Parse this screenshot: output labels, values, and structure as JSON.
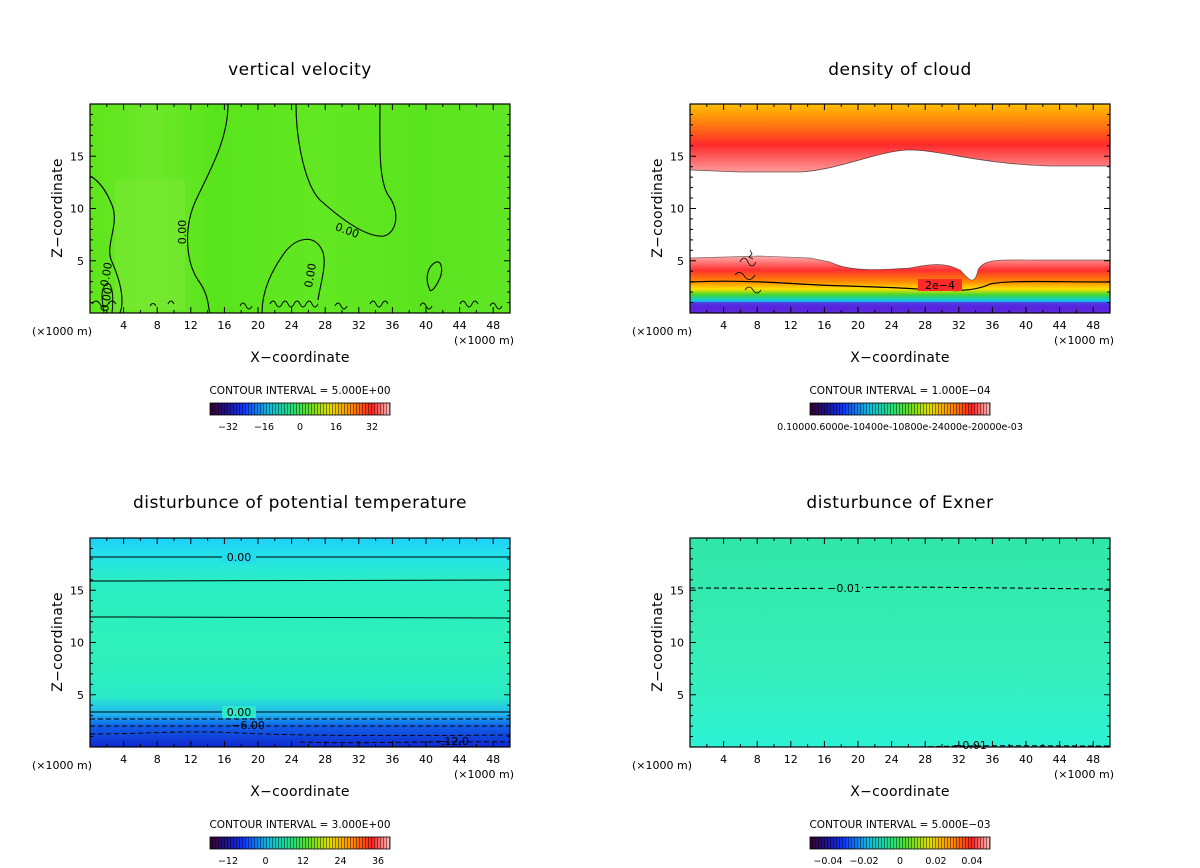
{
  "colors": {
    "velocity_field": "#5ee61c",
    "cloud_hot": "#ff2a2a",
    "cloud_mid": "#ffb000",
    "cloud_cold": "#6a1cd6",
    "theta_top": "#21d6f5",
    "theta_mid": "#2eeeb6",
    "theta_low": "#1434d8",
    "exner_field": "#34ecb2"
  },
  "chart_data": [
    {
      "type": "heatmap",
      "title": "vertical velocity",
      "xlabel": "X−coordinate",
      "ylabel": "Z−coordinate",
      "x_unit": "(×1000 m)",
      "x_ticks": [
        "4",
        "8",
        "12",
        "16",
        "20",
        "24",
        "28",
        "32",
        "36",
        "40",
        "44",
        "48"
      ],
      "y_ticks": [
        "5",
        "10",
        "15"
      ],
      "xlim": [
        0,
        50
      ],
      "ylim": [
        0,
        20
      ],
      "contour_interval": "CONTOUR INTERVAL = 5.000E+00",
      "colorbar_ticks": [
        "−32",
        "−16",
        "0",
        "16",
        "32"
      ],
      "contour_labels": [
        "0.00",
        "0.00",
        "0.00",
        "0.00",
        "0.00"
      ]
    },
    {
      "type": "heatmap",
      "title": "density of cloud",
      "xlabel": "X−coordinate",
      "ylabel": "Z−coordinate",
      "x_unit": "(×1000 m)",
      "x_ticks": [
        "4",
        "8",
        "12",
        "16",
        "20",
        "24",
        "28",
        "32",
        "36",
        "40",
        "44",
        "48"
      ],
      "y_ticks": [
        "5",
        "10",
        "15"
      ],
      "xlim": [
        0,
        50
      ],
      "ylim": [
        0,
        20
      ],
      "contour_interval": "CONTOUR INTERVAL = 1.000E−04",
      "colorbar_label": "0.10000.6000e-10400e-10800e-24000e-20000e-03",
      "contour_labels": [
        "2e−4"
      ]
    },
    {
      "type": "heatmap",
      "title": "disturbunce of potential temperature",
      "xlabel": "X−coordinate",
      "ylabel": "Z−coordinate",
      "x_unit": "(×1000 m)",
      "x_ticks": [
        "4",
        "8",
        "12",
        "16",
        "20",
        "24",
        "28",
        "32",
        "36",
        "40",
        "44",
        "48"
      ],
      "y_ticks": [
        "5",
        "10",
        "15"
      ],
      "xlim": [
        0,
        50
      ],
      "ylim": [
        0,
        20
      ],
      "contour_interval": "CONTOUR INTERVAL = 3.000E+00",
      "colorbar_ticks": [
        "−12",
        "0",
        "12",
        "24",
        "36"
      ],
      "contour_labels": [
        "0.00",
        "0.00",
        "−6.00",
        "−12.0"
      ]
    },
    {
      "type": "heatmap",
      "title": "disturbunce of Exner",
      "xlabel": "X−coordinate",
      "ylabel": "Z−coordinate",
      "x_unit": "(×1000 m)",
      "x_ticks": [
        "4",
        "8",
        "12",
        "16",
        "20",
        "24",
        "28",
        "32",
        "36",
        "40",
        "44",
        "48"
      ],
      "y_ticks": [
        "5",
        "10",
        "15"
      ],
      "xlim": [
        0,
        50
      ],
      "ylim": [
        0,
        20
      ],
      "contour_interval": "CONTOUR INTERVAL = 5.000E−03",
      "colorbar_ticks": [
        "−0.04",
        "−0.02",
        "0",
        "0.02",
        "0.04"
      ],
      "contour_labels": [
        "−0.01",
        "−0.01"
      ]
    }
  ]
}
